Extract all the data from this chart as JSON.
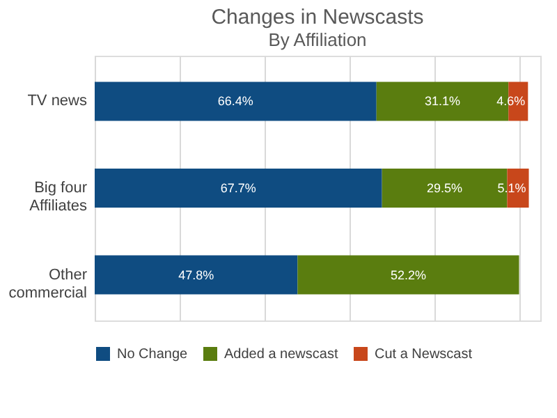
{
  "chart_data": {
    "type": "bar",
    "orientation": "horizontal",
    "stacked": true,
    "title": "Changes in Newscasts",
    "subtitle": "By Affiliation",
    "categories": [
      "TV news",
      "Big four Affiliates",
      "Other commercial"
    ],
    "series": [
      {
        "name": "No Change",
        "color": "#0f4c81",
        "values": [
          66.4,
          67.7,
          47.8
        ],
        "value_labels": [
          "66.4%",
          "67.7%",
          "47.8%"
        ]
      },
      {
        "name": "Added a newscast",
        "color": "#5a7d0f",
        "values": [
          31.1,
          29.5,
          52.2
        ],
        "value_labels": [
          "31.1%",
          "29.5%",
          "52.2%"
        ]
      },
      {
        "name": "Cut a Newscast",
        "color": "#c8471b",
        "values": [
          4.6,
          5.1,
          null
        ],
        "value_labels": [
          "4.6%",
          "5.1%",
          null
        ]
      }
    ],
    "xlim": [
      0,
      105
    ],
    "xticks": [
      {
        "value": 0,
        "label": null
      },
      {
        "value": 20,
        "label": null
      },
      {
        "value": 40,
        "label": null
      },
      {
        "value": 60,
        "label": null
      },
      {
        "value": 80,
        "label": null
      },
      {
        "value": 100,
        "label": null
      }
    ],
    "grid": "x",
    "tick_labels": "y",
    "legend": "bottom"
  }
}
